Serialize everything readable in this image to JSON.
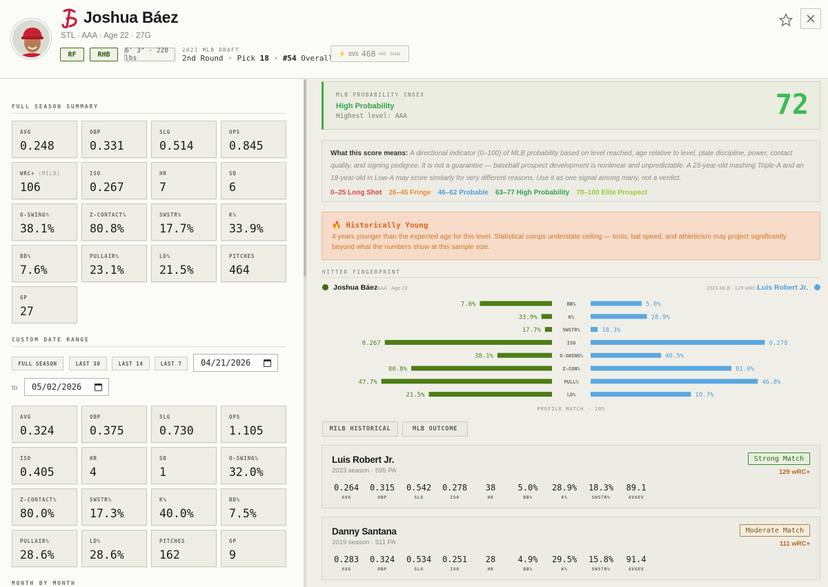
{
  "header": {
    "player_name": "Joshua Báez",
    "sub_line": "STL · AAA · Age 22 · 27G",
    "position": "RF",
    "bats": "RHB",
    "size": "6' 3\" · 220 lbs",
    "draft_label": "2021 MLB DRAFT",
    "draft_round": "2nd Round",
    "draft_pick_label": "Pick",
    "draft_pick": "18",
    "draft_overall": "#54",
    "draft_overall_label": "Overall",
    "dvs_label": "DVS",
    "dvs_value": "468",
    "dvs_sub": "#63 · Solid"
  },
  "left": {
    "full_season_title": "FULL SEASON SUMMARY",
    "full_season": [
      {
        "k": "AVG",
        "v": "0.248"
      },
      {
        "k": "OBP",
        "v": "0.331"
      },
      {
        "k": "SLG",
        "v": "0.514"
      },
      {
        "k": "OPS",
        "v": "0.845"
      },
      {
        "k": "WRC+",
        "k_sub": "(MILB)",
        "v": "106"
      },
      {
        "k": "ISO",
        "v": "0.267"
      },
      {
        "k": "HR",
        "v": "7"
      },
      {
        "k": "SB",
        "v": "6"
      },
      {
        "k": "O-SWING%",
        "v": "38.1%"
      },
      {
        "k": "Z-CONTACT%",
        "v": "80.8%"
      },
      {
        "k": "SWSTR%",
        "v": "17.7%"
      },
      {
        "k": "K%",
        "v": "33.9%"
      },
      {
        "k": "BB%",
        "v": "7.6%"
      },
      {
        "k": "PULLAIR%",
        "v": "23.1%"
      },
      {
        "k": "LD%",
        "v": "21.5%"
      },
      {
        "k": "PITCHES",
        "v": "464"
      },
      {
        "k": "GP",
        "v": "27"
      }
    ],
    "custom_range_title": "CUSTOM DATE RANGE",
    "range_buttons": [
      "FULL SEASON",
      "LAST 30",
      "LAST 14",
      "LAST 7"
    ],
    "date_from": "04/21/2026",
    "to_label": "to",
    "date_to": "05/02/2026",
    "custom_range": [
      {
        "k": "AVG",
        "v": "0.324"
      },
      {
        "k": "OBP",
        "v": "0.375"
      },
      {
        "k": "SLG",
        "v": "0.730"
      },
      {
        "k": "OPS",
        "v": "1.105"
      },
      {
        "k": "ISO",
        "v": "0.405"
      },
      {
        "k": "HR",
        "v": "4"
      },
      {
        "k": "SB",
        "v": "1"
      },
      {
        "k": "O-SWING%",
        "v": "32.0%"
      },
      {
        "k": "Z-CONTACT%",
        "v": "80.0%"
      },
      {
        "k": "SWSTR%",
        "v": "17.3%"
      },
      {
        "k": "K%",
        "v": "40.0%"
      },
      {
        "k": "BB%",
        "v": "7.5%"
      },
      {
        "k": "PULLAIR%",
        "v": "28.6%"
      },
      {
        "k": "LD%",
        "v": "28.6%"
      },
      {
        "k": "PITCHES",
        "v": "162"
      },
      {
        "k": "GP",
        "v": "9"
      }
    ],
    "month_title": "MONTH BY MONTH"
  },
  "probability": {
    "label": "MLB PROBABILITY INDEX",
    "status": "High Probability",
    "sub": "Highest level: AAA",
    "score": "72",
    "color": "#3dbb55"
  },
  "explain": {
    "lead": "What this score means:",
    "body": "A directional indicator (0–100) of MLB probability based on level reached, age relative to level, plate discipline, power, contact quality, and signing pedigree. It is not a guarantee — baseball prospect development is nonlinear and unpredictable. A 23-year-old mashing Triple-A and an 18-year-old in Low-A may score similarly for very different reasons. Use it as one signal among many, not a verdict.",
    "legend": [
      {
        "text": "0–25 Long Shot",
        "color": "#e0483a"
      },
      {
        "text": "26–45 Fringe",
        "color": "#f08a22"
      },
      {
        "text": "46–62 Probable",
        "color": "#4f9fd9"
      },
      {
        "text": "63–77 High Probability",
        "color": "#2fa34d"
      },
      {
        "text": "78–100 Elite Prospect",
        "color": "#9ccc2c"
      }
    ]
  },
  "young": {
    "icon": "fire-icon",
    "title": "Historically Young",
    "desc": "4 years younger than the expected age for this level. Statistical comps understate ceiling — tools, bat speed, and athleticism may project significantly beyond what the numbers show at this sample size."
  },
  "fingerprint": {
    "title": "HITTER FINGERPRINT",
    "left_name": "Joshua Báez",
    "left_meta": "AAA · Age 22",
    "right_meta": "2023 MLB · 129 wRC+",
    "right_name": "Luis Robert Jr.",
    "left_color": "#4c7d14",
    "right_color": "#5aa8e0",
    "profile_match": "PROFILE MATCH · 10%"
  },
  "chart_data": {
    "type": "bar",
    "categories": [
      "BB%",
      "K%",
      "SWSTR%",
      "ISO",
      "O-SWING%",
      "Z-CON%",
      "PULL%",
      "LD%"
    ],
    "series": [
      {
        "name": "Joshua Báez",
        "labels": [
          "7.6%",
          "33.9%",
          "17.7%",
          "0.267",
          "38.1%",
          "80.8%",
          "47.7%",
          "21.5%"
        ],
        "values": [
          7.6,
          33.9,
          17.7,
          0.267,
          38.1,
          80.8,
          47.7,
          21.5
        ],
        "fill": [
          0.41,
          0.06,
          0.04,
          0.95,
          0.31,
          0.8,
          0.97,
          0.7
        ]
      },
      {
        "name": "Luis Robert Jr.",
        "labels": [
          "5.0%",
          "28.9%",
          "18.3%",
          "0.278",
          "40.5%",
          "81.0%",
          "46.8%",
          "19.7%"
        ],
        "values": [
          5.0,
          28.9,
          18.3,
          0.278,
          40.5,
          81.0,
          46.8,
          19.7
        ],
        "fill": [
          0.29,
          0.32,
          0.04,
          0.99,
          0.4,
          0.8,
          0.95,
          0.57
        ]
      }
    ]
  },
  "comps": {
    "toggle": [
      "MILB HISTORICAL",
      "MLB OUTCOME"
    ],
    "cards": [
      {
        "name": "Luis Robert Jr.",
        "season": "2023 season · 595 PA",
        "match": "Strong Match",
        "match_type": "strong",
        "wrc": "129 wRC+",
        "stats": [
          {
            "v": "0.264",
            "k": "AVG"
          },
          {
            "v": "0.315",
            "k": "OBP"
          },
          {
            "v": "0.542",
            "k": "SLG"
          },
          {
            "v": "0.278",
            "k": "ISO"
          },
          {
            "v": "38",
            "k": "HR"
          },
          {
            "v": "5.0%",
            "k": "BB%"
          },
          {
            "v": "28.9%",
            "k": "K%"
          },
          {
            "v": "18.3%",
            "k": "SWSTR%"
          },
          {
            "v": "89.1",
            "k": "AVGEV"
          }
        ]
      },
      {
        "name": "Danny Santana",
        "season": "2019 season · 511 PA",
        "match": "Moderate Match",
        "match_type": "moderate",
        "wrc": "111 wRC+",
        "stats": [
          {
            "v": "0.283",
            "k": "AVG"
          },
          {
            "v": "0.324",
            "k": "OBP"
          },
          {
            "v": "0.534",
            "k": "SLG"
          },
          {
            "v": "0.251",
            "k": "ISO"
          },
          {
            "v": "28",
            "k": "HR"
          },
          {
            "v": "4.9%",
            "k": "BB%"
          },
          {
            "v": "29.5%",
            "k": "K%"
          },
          {
            "v": "15.8%",
            "k": "SWSTR%"
          },
          {
            "v": "91.4",
            "k": "AVGEV"
          }
        ]
      }
    ]
  }
}
